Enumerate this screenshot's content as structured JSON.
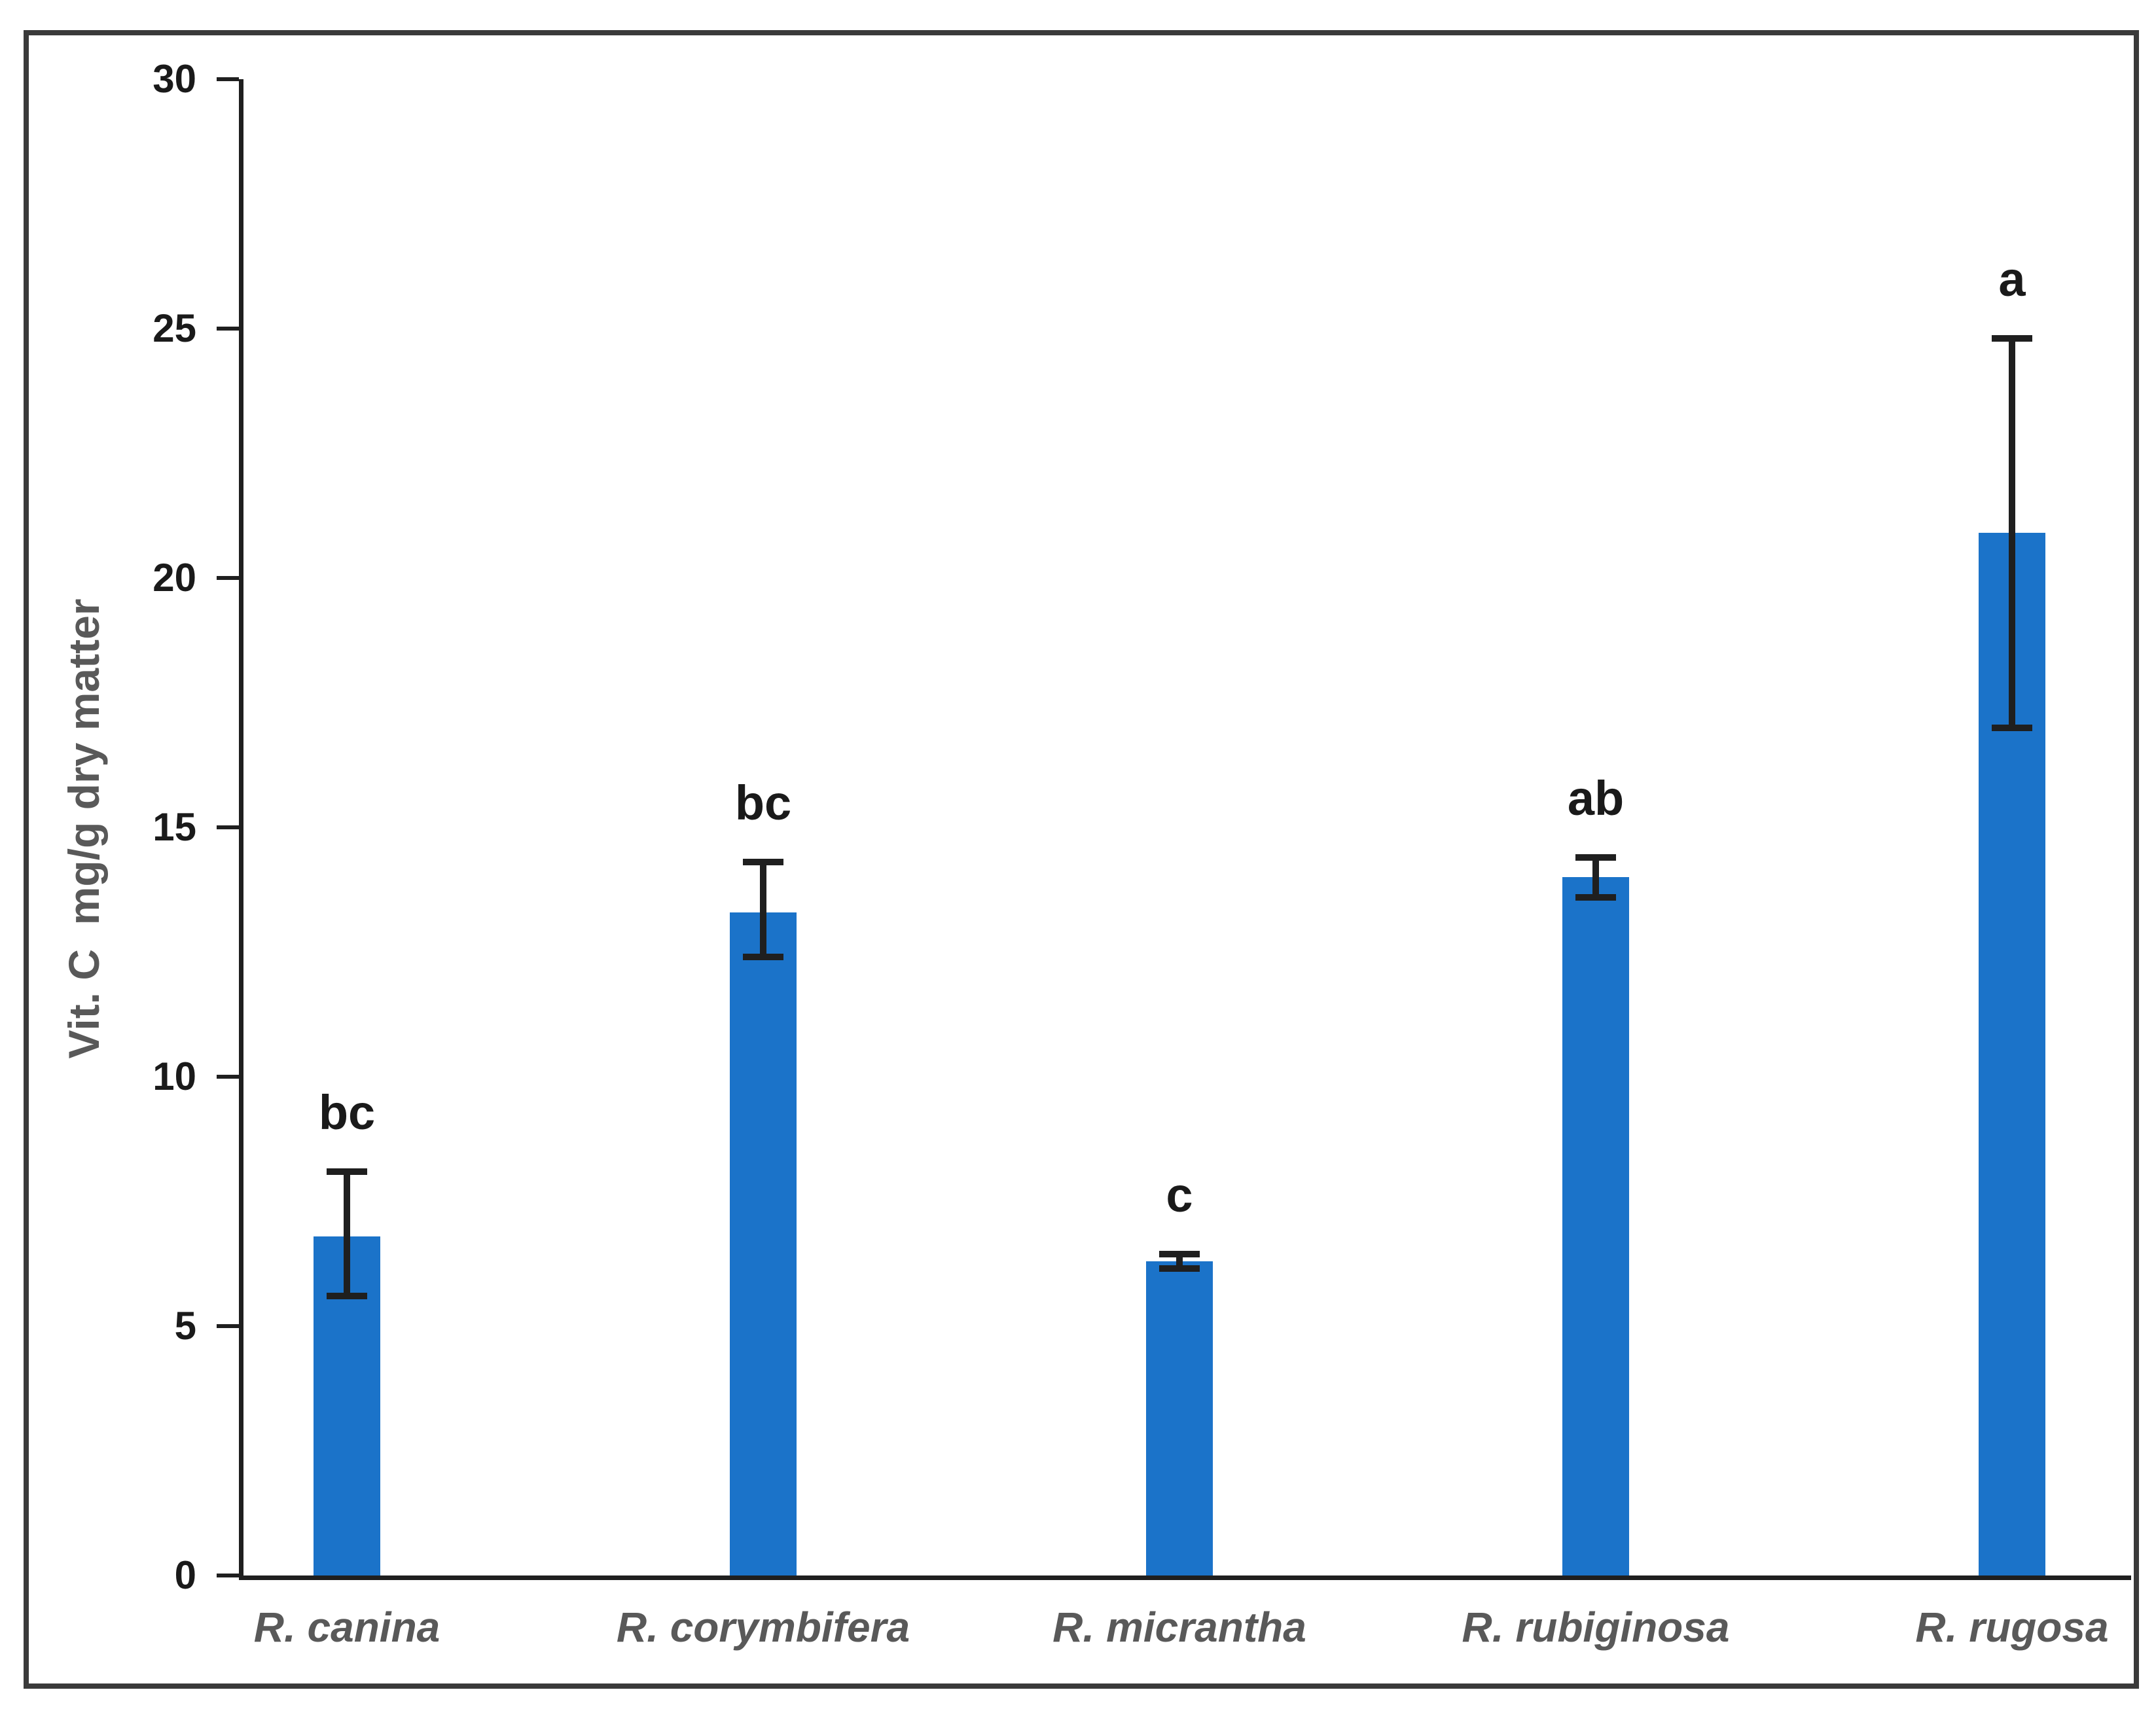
{
  "chart_data": {
    "type": "bar",
    "title": "",
    "xlabel": "",
    "ylabel": "Vit. C  mg/g dry matter",
    "ylim": [
      0,
      30
    ],
    "yticks": [
      0,
      5,
      10,
      15,
      20,
      25,
      30
    ],
    "grid": false,
    "legend": false,
    "bar_color": "#1b73c9",
    "categories": [
      "R. canina",
      "R. corymbifera",
      "R. micrantha",
      "R. rubiginosa",
      "R. rugosa"
    ],
    "values": [
      6.8,
      13.3,
      6.3,
      14.0,
      20.9
    ],
    "error_bars": {
      "upper": [
        8.1,
        14.3,
        6.45,
        14.4,
        24.8
      ],
      "lower": [
        5.6,
        12.4,
        6.15,
        13.6,
        17.0
      ]
    },
    "significance_labels": [
      "bc",
      "bc",
      "c",
      "ab",
      "a"
    ],
    "colors": {
      "axis": "#1f1f1f",
      "tick_label": "#1a1a1a",
      "axis_title": "#595959",
      "category_label": "#595959",
      "significance_label": "#1a1a1a",
      "figure_border": "#3a3a3a"
    }
  }
}
